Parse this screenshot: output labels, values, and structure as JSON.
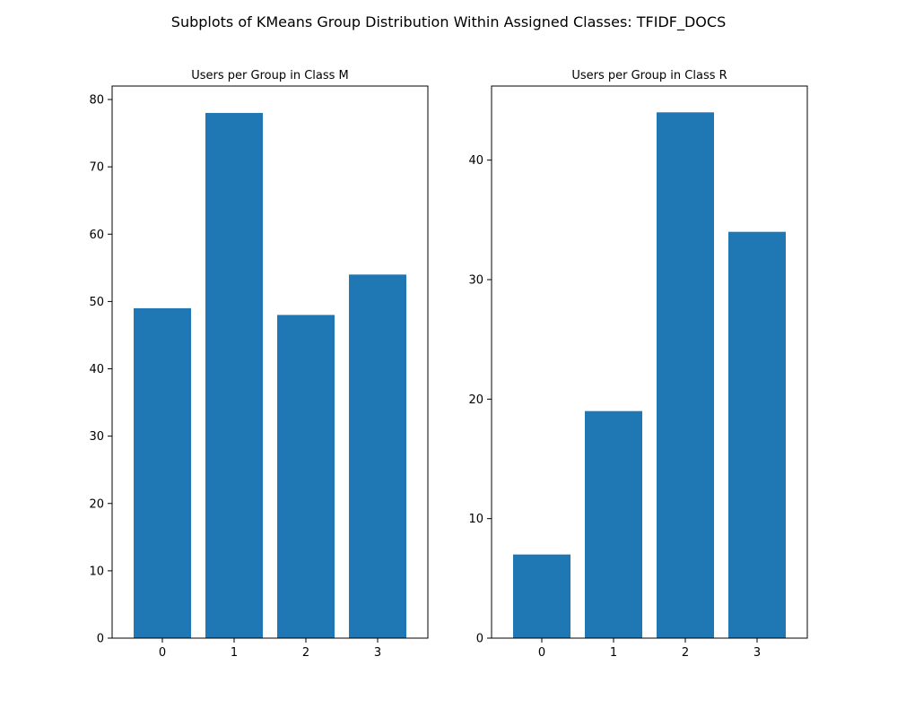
{
  "figure": {
    "suptitle": "Subplots of KMeans Group Distribution Within Assigned Classes: TFIDF_DOCS",
    "bar_color": "#1f77b4"
  },
  "chart_data": [
    {
      "type": "bar",
      "title": "Users per Group in Class M",
      "xlabel": "",
      "ylabel": "",
      "categories": [
        "0",
        "1",
        "2",
        "3"
      ],
      "values": [
        49,
        78,
        48,
        54
      ],
      "ylim": [
        0,
        82
      ],
      "yticks": [
        0,
        10,
        20,
        30,
        40,
        50,
        60,
        70,
        80
      ],
      "grid": false
    },
    {
      "type": "bar",
      "title": "Users per Group in Class R",
      "xlabel": "",
      "ylabel": "",
      "categories": [
        "0",
        "1",
        "2",
        "3"
      ],
      "values": [
        7,
        19,
        44,
        34
      ],
      "ylim": [
        0,
        46.2
      ],
      "yticks": [
        0,
        10,
        20,
        30,
        40
      ],
      "grid": false
    }
  ]
}
